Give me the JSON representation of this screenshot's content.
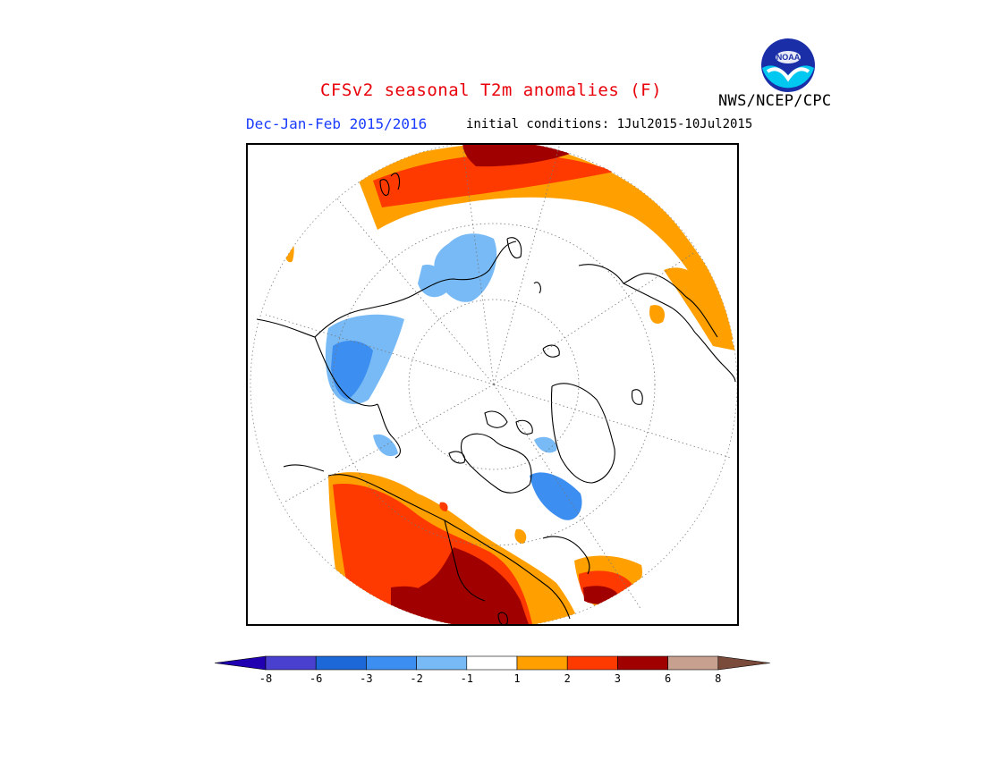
{
  "header": {
    "title": "CFSv2 seasonal T2m anomalies (F)",
    "period": "Dec-Jan-Feb 2015/2016",
    "initial_conditions": "initial conditions: 1Jul2015-10Jul2015",
    "agency": "NWS/NCEP/CPC",
    "logo_text": "NOAA"
  },
  "colors": {
    "title": "#e8000b",
    "period": "#1a3cff",
    "text": "#000000"
  },
  "map": {
    "projection": "polar stereographic (north pole)",
    "variable": "2m temperature anomaly",
    "units": "F"
  },
  "legend": {
    "ticks": [
      "-8",
      "-6",
      "-3",
      "-2",
      "-1",
      "1",
      "2",
      "3",
      "6",
      "8"
    ],
    "colors": [
      "#2000b0",
      "#4a40d0",
      "#1c68d8",
      "#3c8ef0",
      "#78baf5",
      "#ffffff",
      "#ffa000",
      "#ff3a00",
      "#a00000",
      "#c8a090",
      "#7a4a3a"
    ]
  }
}
